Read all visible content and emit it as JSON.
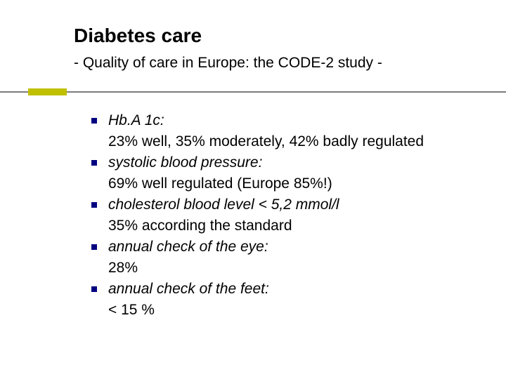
{
  "title": "Diabetes care",
  "subtitle": "- Quality of care in Europe:  the CODE-2 study -",
  "colors": {
    "bullet": "#000080",
    "text": "#000000",
    "rule_line": "#7b7b7b",
    "rule_accent": "#c0c000",
    "background": "#ffffff"
  },
  "fontsizes": {
    "title": 28,
    "subtitle": 21,
    "body": 21
  },
  "items": [
    {
      "heading": "Hb.A 1c:",
      "detail": "23% well,  35% moderately, 42% badly regulated"
    },
    {
      "heading": "systolic blood pressure:",
      "detail": "69% well regulated (Europe 85%!)"
    },
    {
      "heading": "cholesterol blood level < 5,2 mmol/l",
      "detail": "35% according the standard"
    },
    {
      "heading": "annual check of the eye:",
      "detail": "28%"
    },
    {
      "heading": "annual check of the feet:",
      "detail": "< 15 %"
    }
  ]
}
